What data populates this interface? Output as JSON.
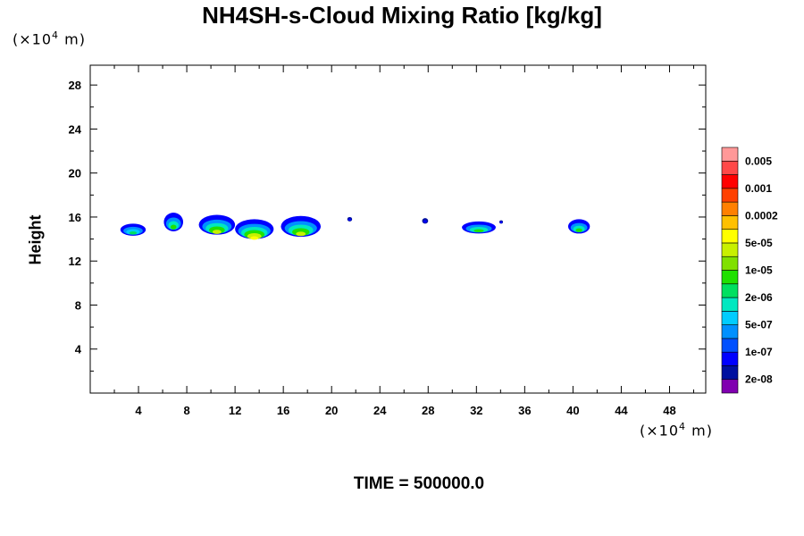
{
  "chart_data": {
    "type": "contour",
    "title": "NH4SH-s-Cloud Mixing Ratio [kg/kg]",
    "ylabel": "Height",
    "xlabel": "",
    "x_unit": {
      "prefix": "(×10",
      "exp": "4",
      "suffix": " m)"
    },
    "y_unit": {
      "prefix": "(×10",
      "exp": "4",
      "suffix": " m)"
    },
    "xlim": [
      0,
      51
    ],
    "ylim": [
      0,
      29.8
    ],
    "x_ticks": [
      4,
      8,
      12,
      16,
      20,
      24,
      28,
      32,
      36,
      40,
      44,
      48
    ],
    "y_ticks": [
      4,
      8,
      12,
      16,
      20,
      24,
      28
    ],
    "footer": "TIME = 500000.0",
    "colorbar": {
      "colors": [
        "#8000b0",
        "#0010a0",
        "#0000ff",
        "#0050ff",
        "#0090ff",
        "#00ccff",
        "#00e8c0",
        "#00e060",
        "#20e000",
        "#80e000",
        "#c8f000",
        "#ffff00",
        "#ffc000",
        "#ff8000",
        "#ff4000",
        "#ff0000",
        "#ff4848",
        "#ff9898"
      ],
      "labels": [
        {
          "text": "2e-08",
          "level": 1
        },
        {
          "text": "1e-07",
          "level": 3
        },
        {
          "text": "5e-07",
          "level": 5
        },
        {
          "text": "2e-06",
          "level": 7
        },
        {
          "text": "1e-05",
          "level": 9
        },
        {
          "text": "5e-05",
          "level": 11
        },
        {
          "text": "0.0002",
          "level": 13
        },
        {
          "text": "0.001",
          "level": 15
        },
        {
          "text": "0.005",
          "level": 17
        }
      ]
    },
    "cloud_regions": [
      {
        "x": [
          2.5,
          4.6
        ],
        "y": [
          14.3,
          15.4
        ],
        "color_levels": [
          2,
          4,
          5,
          7
        ]
      },
      {
        "x": [
          6.1,
          7.7
        ],
        "y": [
          14.7,
          16.4
        ],
        "color_levels": [
          2,
          4,
          6,
          8
        ]
      },
      {
        "x": [
          9.0,
          12.0
        ],
        "y": [
          14.4,
          16.2
        ],
        "color_levels": [
          2,
          4,
          6,
          8,
          10
        ]
      },
      {
        "x": [
          12.0,
          15.2
        ],
        "y": [
          14.0,
          15.8
        ],
        "color_levels": [
          2,
          4,
          6,
          8,
          10,
          11
        ]
      },
      {
        "x": [
          15.8,
          19.1
        ],
        "y": [
          14.2,
          16.1
        ],
        "color_levels": [
          2,
          4,
          6,
          8,
          10
        ]
      },
      {
        "x": [
          21.3,
          21.7
        ],
        "y": [
          15.6,
          16.0
        ],
        "color_levels": [
          1,
          2
        ]
      },
      {
        "x": [
          27.5,
          28.0
        ],
        "y": [
          15.4,
          15.9
        ],
        "color_levels": [
          1,
          2
        ]
      },
      {
        "x": [
          30.8,
          33.6
        ],
        "y": [
          14.5,
          15.6
        ],
        "color_levels": [
          2,
          4,
          6,
          8
        ]
      },
      {
        "x": [
          33.9,
          34.2
        ],
        "y": [
          15.4,
          15.7
        ],
        "color_levels": [
          1,
          2
        ]
      },
      {
        "x": [
          39.6,
          41.4
        ],
        "y": [
          14.5,
          15.8
        ],
        "color_levels": [
          2,
          4,
          6,
          8
        ]
      }
    ]
  }
}
